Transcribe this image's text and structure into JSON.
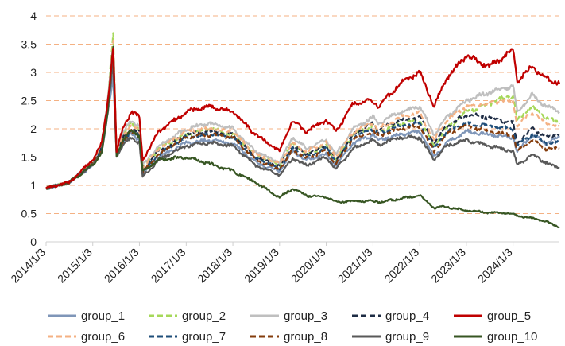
{
  "chart_data": {
    "type": "line",
    "ylim": [
      0,
      4
    ],
    "y_ticks": [
      "0",
      "0.5",
      "1",
      "1.5",
      "2",
      "2.5",
      "3",
      "3.5",
      "4"
    ],
    "x_ticks": [
      "2014/1/3",
      "2015/1/3",
      "2016/1/3",
      "2017/1/3",
      "2018/1/3",
      "2019/1/3",
      "2020/1/3",
      "2021/1/3",
      "2022/1/3",
      "2023/1/3",
      "2024/1/3"
    ],
    "grid": "horizontal dashed",
    "legend_position": "bottom",
    "series": [
      {
        "name": "group_1",
        "color": "#7f96b8",
        "dash": "solid",
        "x": [
          "2014/1/3",
          "2014/7/1",
          "2015/1/3",
          "2015/3/15",
          "2015/5/1",
          "2015/6/12",
          "2015/7/8",
          "2015/9/1",
          "2015/11/1",
          "2016/1/3",
          "2016/1/28",
          "2016/6/1",
          "2017/1/3",
          "2017/7/1",
          "2018/1/3",
          "2018/7/1",
          "2019/1/3",
          "2019/4/15",
          "2019/8/1",
          "2020/1/3",
          "2020/3/20",
          "2020/8/1",
          "2021/1/3",
          "2021/2/15",
          "2021/8/1",
          "2022/1/3",
          "2022/4/25",
          "2022/8/1",
          "2023/1/3",
          "2023/7/1",
          "2024/1/3",
          "2024/2/5",
          "2024/6/1",
          "2024/9/15",
          "2024/12/31"
        ],
        "y": [
          0.95,
          1.05,
          1.35,
          1.6,
          2.3,
          2.9,
          1.55,
          1.8,
          1.9,
          1.8,
          1.2,
          1.5,
          1.75,
          1.8,
          1.75,
          1.4,
          1.25,
          1.6,
          1.45,
          1.55,
          1.35,
          1.75,
          1.9,
          1.8,
          1.9,
          1.95,
          1.5,
          1.75,
          1.95,
          1.9,
          1.85,
          1.6,
          1.9,
          1.75,
          1.85
        ]
      },
      {
        "name": "group_2",
        "color": "#a6d85a",
        "dash": "dashed",
        "x": [
          "2014/1/3",
          "2014/7/1",
          "2015/1/3",
          "2015/3/15",
          "2015/5/1",
          "2015/6/12",
          "2015/7/8",
          "2015/9/1",
          "2015/11/1",
          "2016/1/3",
          "2016/1/28",
          "2016/6/1",
          "2017/1/3",
          "2017/7/1",
          "2018/1/3",
          "2018/7/1",
          "2019/1/3",
          "2019/4/15",
          "2019/8/1",
          "2020/1/3",
          "2020/3/20",
          "2020/8/1",
          "2021/1/3",
          "2021/2/15",
          "2021/8/1",
          "2022/1/3",
          "2022/4/25",
          "2022/8/1",
          "2023/1/3",
          "2023/7/1",
          "2024/1/3",
          "2024/2/5",
          "2024/6/1",
          "2024/9/15",
          "2024/12/31"
        ],
        "y": [
          0.95,
          1.05,
          1.4,
          1.7,
          2.5,
          3.65,
          1.6,
          1.9,
          2.1,
          2.0,
          1.3,
          1.65,
          1.9,
          2.0,
          1.9,
          1.55,
          1.35,
          1.75,
          1.55,
          1.7,
          1.45,
          1.9,
          2.05,
          1.95,
          2.1,
          2.15,
          1.7,
          2.0,
          2.3,
          2.45,
          2.6,
          2.15,
          2.4,
          2.2,
          2.1
        ]
      },
      {
        "name": "group_3",
        "color": "#bfbfbf",
        "dash": "solid",
        "x": [
          "2014/1/3",
          "2014/7/1",
          "2015/1/3",
          "2015/3/15",
          "2015/5/1",
          "2015/6/12",
          "2015/7/8",
          "2015/9/1",
          "2015/11/1",
          "2016/1/3",
          "2016/1/28",
          "2016/6/1",
          "2017/1/3",
          "2017/7/1",
          "2018/1/3",
          "2018/7/1",
          "2019/1/3",
          "2019/4/15",
          "2019/8/1",
          "2020/1/3",
          "2020/3/20",
          "2020/8/1",
          "2021/1/3",
          "2021/2/15",
          "2021/8/1",
          "2022/1/3",
          "2022/4/25",
          "2022/8/1",
          "2023/1/3",
          "2023/7/1",
          "2024/1/3",
          "2024/2/5",
          "2024/6/1",
          "2024/9/15",
          "2024/12/31"
        ],
        "y": [
          0.95,
          1.05,
          1.42,
          1.75,
          2.5,
          3.5,
          1.6,
          1.95,
          2.15,
          2.05,
          1.35,
          1.7,
          2.0,
          2.1,
          2.0,
          1.6,
          1.4,
          1.85,
          1.65,
          1.8,
          1.55,
          2.0,
          2.2,
          2.1,
          2.3,
          2.4,
          1.9,
          2.2,
          2.5,
          2.65,
          2.75,
          2.3,
          2.6,
          2.4,
          2.3
        ]
      },
      {
        "name": "group_4",
        "color": "#1e2c44",
        "dash": "dashed",
        "x": [
          "2014/1/3",
          "2014/7/1",
          "2015/1/3",
          "2015/3/15",
          "2015/5/1",
          "2015/6/12",
          "2015/7/8",
          "2015/9/1",
          "2015/11/1",
          "2016/1/3",
          "2016/1/28",
          "2016/6/1",
          "2017/1/3",
          "2017/7/1",
          "2018/1/3",
          "2018/7/1",
          "2019/1/3",
          "2019/4/15",
          "2019/8/1",
          "2020/1/3",
          "2020/3/20",
          "2020/8/1",
          "2021/1/3",
          "2021/2/15",
          "2021/8/1",
          "2022/1/3",
          "2022/4/25",
          "2022/8/1",
          "2023/1/3",
          "2023/7/1",
          "2024/1/3",
          "2024/2/5",
          "2024/6/1",
          "2024/9/15",
          "2024/12/31"
        ],
        "y": [
          0.95,
          1.05,
          1.38,
          1.65,
          2.4,
          3.4,
          1.55,
          1.85,
          2.0,
          1.95,
          1.28,
          1.6,
          1.9,
          1.95,
          1.9,
          1.5,
          1.33,
          1.7,
          1.55,
          1.7,
          1.45,
          1.9,
          2.1,
          2.0,
          2.15,
          2.2,
          1.75,
          2.05,
          2.25,
          2.2,
          2.1,
          1.75,
          2.0,
          1.85,
          1.9
        ]
      },
      {
        "name": "group_5",
        "color": "#c00000",
        "dash": "solid",
        "x": [
          "2014/1/3",
          "2014/7/1",
          "2015/1/3",
          "2015/3/15",
          "2015/5/1",
          "2015/6/12",
          "2015/7/8",
          "2015/9/1",
          "2015/11/1",
          "2016/1/3",
          "2016/1/28",
          "2016/6/1",
          "2017/1/3",
          "2017/7/1",
          "2018/1/3",
          "2018/7/1",
          "2019/1/3",
          "2019/4/15",
          "2019/8/1",
          "2020/1/3",
          "2020/3/20",
          "2020/8/1",
          "2021/1/3",
          "2021/2/15",
          "2021/8/1",
          "2022/1/3",
          "2022/4/25",
          "2022/8/1",
          "2023/1/3",
          "2023/7/1",
          "2024/1/3",
          "2024/2/5",
          "2024/6/1",
          "2024/9/15",
          "2024/12/31"
        ],
        "y": [
          0.95,
          1.05,
          1.45,
          1.75,
          2.5,
          3.45,
          1.6,
          2.05,
          2.3,
          2.2,
          1.45,
          1.95,
          2.3,
          2.4,
          2.3,
          1.9,
          1.6,
          2.15,
          1.95,
          2.15,
          1.95,
          2.45,
          2.5,
          2.4,
          2.8,
          3.0,
          2.4,
          2.9,
          3.3,
          3.1,
          3.4,
          2.85,
          3.1,
          2.9,
          2.8
        ]
      },
      {
        "name": "group_6",
        "color": "#f4b183",
        "dash": "dashed",
        "x": [
          "2014/1/3",
          "2014/7/1",
          "2015/1/3",
          "2015/3/15",
          "2015/5/1",
          "2015/6/12",
          "2015/7/8",
          "2015/9/1",
          "2015/11/1",
          "2016/1/3",
          "2016/1/28",
          "2016/6/1",
          "2017/1/3",
          "2017/7/1",
          "2018/1/3",
          "2018/7/1",
          "2019/1/3",
          "2019/4/15",
          "2019/8/1",
          "2020/1/3",
          "2020/3/20",
          "2020/8/1",
          "2021/1/3",
          "2021/2/15",
          "2021/8/1",
          "2022/1/3",
          "2022/4/25",
          "2022/8/1",
          "2023/1/3",
          "2023/7/1",
          "2024/1/3",
          "2024/2/5",
          "2024/6/1",
          "2024/9/15",
          "2024/12/31"
        ],
        "y": [
          0.95,
          1.05,
          1.4,
          1.7,
          2.45,
          3.55,
          1.6,
          1.9,
          2.05,
          1.95,
          1.3,
          1.65,
          1.95,
          2.0,
          1.95,
          1.55,
          1.38,
          1.75,
          1.6,
          1.75,
          1.5,
          1.95,
          2.1,
          2.0,
          2.2,
          2.3,
          1.8,
          2.15,
          2.4,
          2.45,
          2.5,
          2.05,
          2.3,
          2.1,
          2.05
        ]
      },
      {
        "name": "group_7",
        "color": "#1f4e79",
        "dash": "dashed",
        "x": [
          "2014/1/3",
          "2014/7/1",
          "2015/1/3",
          "2015/3/15",
          "2015/5/1",
          "2015/6/12",
          "2015/7/8",
          "2015/9/1",
          "2015/11/1",
          "2016/1/3",
          "2016/1/28",
          "2016/6/1",
          "2017/1/3",
          "2017/7/1",
          "2018/1/3",
          "2018/7/1",
          "2019/1/3",
          "2019/4/15",
          "2019/8/1",
          "2020/1/3",
          "2020/3/20",
          "2020/8/1",
          "2021/1/3",
          "2021/2/15",
          "2021/8/1",
          "2022/1/3",
          "2022/4/25",
          "2022/8/1",
          "2023/1/3",
          "2023/7/1",
          "2024/1/3",
          "2024/2/5",
          "2024/6/1",
          "2024/9/15",
          "2024/12/31"
        ],
        "y": [
          0.95,
          1.05,
          1.38,
          1.65,
          2.4,
          3.3,
          1.55,
          1.8,
          1.95,
          1.9,
          1.25,
          1.55,
          1.85,
          1.9,
          1.85,
          1.48,
          1.3,
          1.65,
          1.5,
          1.65,
          1.42,
          1.85,
          2.0,
          1.92,
          2.05,
          2.1,
          1.65,
          1.95,
          2.1,
          2.05,
          2.0,
          1.7,
          1.9,
          1.75,
          1.75
        ]
      },
      {
        "name": "group_8",
        "color": "#843c0c",
        "dash": "dashed",
        "x": [
          "2014/1/3",
          "2014/7/1",
          "2015/1/3",
          "2015/3/15",
          "2015/5/1",
          "2015/6/12",
          "2015/7/8",
          "2015/9/1",
          "2015/11/1",
          "2016/1/3",
          "2016/1/28",
          "2016/6/1",
          "2017/1/3",
          "2017/7/1",
          "2018/1/3",
          "2018/7/1",
          "2019/1/3",
          "2019/4/15",
          "2019/8/1",
          "2020/1/3",
          "2020/3/20",
          "2020/8/1",
          "2021/1/3",
          "2021/2/15",
          "2021/8/1",
          "2022/1/3",
          "2022/4/25",
          "2022/8/1",
          "2023/1/3",
          "2023/7/1",
          "2024/1/3",
          "2024/2/5",
          "2024/6/1",
          "2024/9/15",
          "2024/12/31"
        ],
        "y": [
          0.95,
          1.05,
          1.38,
          1.62,
          2.35,
          3.3,
          1.52,
          1.78,
          1.95,
          1.85,
          1.22,
          1.55,
          1.85,
          1.9,
          1.85,
          1.45,
          1.28,
          1.62,
          1.48,
          1.62,
          1.38,
          1.82,
          1.95,
          1.88,
          2.0,
          2.05,
          1.6,
          1.9,
          2.05,
          1.95,
          1.9,
          1.6,
          1.8,
          1.65,
          1.65
        ]
      },
      {
        "name": "group_9",
        "color": "#595959",
        "dash": "solid",
        "x": [
          "2014/1/3",
          "2014/7/1",
          "2015/1/3",
          "2015/3/15",
          "2015/5/1",
          "2015/6/12",
          "2015/7/8",
          "2015/9/1",
          "2015/11/1",
          "2016/1/3",
          "2016/1/28",
          "2016/6/1",
          "2017/1/3",
          "2017/7/1",
          "2018/1/3",
          "2018/7/1",
          "2019/1/3",
          "2019/4/15",
          "2019/8/1",
          "2020/1/3",
          "2020/3/20",
          "2020/8/1",
          "2021/1/3",
          "2021/2/15",
          "2021/8/1",
          "2022/1/3",
          "2022/4/25",
          "2022/8/1",
          "2023/1/3",
          "2023/7/1",
          "2024/1/3",
          "2024/2/5",
          "2024/6/1",
          "2024/9/15",
          "2024/12/31"
        ],
        "y": [
          0.95,
          1.05,
          1.36,
          1.6,
          2.3,
          3.2,
          1.5,
          1.72,
          1.85,
          1.75,
          1.15,
          1.45,
          1.7,
          1.75,
          1.7,
          1.35,
          1.18,
          1.48,
          1.35,
          1.5,
          1.28,
          1.65,
          1.8,
          1.72,
          1.85,
          1.85,
          1.45,
          1.7,
          1.8,
          1.7,
          1.6,
          1.35,
          1.55,
          1.4,
          1.3
        ]
      },
      {
        "name": "group_10",
        "color": "#375623",
        "dash": "solid",
        "x": [
          "2014/1/3",
          "2014/7/1",
          "2015/1/3",
          "2015/3/15",
          "2015/5/1",
          "2015/6/12",
          "2015/7/8",
          "2015/9/1",
          "2015/11/1",
          "2016/1/3",
          "2016/1/28",
          "2016/6/1",
          "2017/1/3",
          "2017/7/1",
          "2018/1/3",
          "2018/7/1",
          "2019/1/3",
          "2019/4/15",
          "2019/8/1",
          "2020/1/3",
          "2020/3/20",
          "2020/8/1",
          "2021/1/3",
          "2021/2/15",
          "2021/8/1",
          "2022/1/3",
          "2022/4/25",
          "2022/8/1",
          "2023/1/3",
          "2023/7/1",
          "2024/1/3",
          "2024/2/5",
          "2024/6/1",
          "2024/9/15",
          "2024/12/31"
        ],
        "y": [
          0.95,
          1.05,
          1.36,
          1.6,
          2.3,
          3.5,
          1.55,
          1.8,
          2.0,
          1.85,
          1.25,
          1.45,
          1.5,
          1.38,
          1.25,
          1.05,
          0.78,
          0.95,
          0.82,
          0.8,
          0.7,
          0.72,
          0.72,
          0.7,
          0.76,
          0.82,
          0.6,
          0.62,
          0.55,
          0.52,
          0.5,
          0.46,
          0.42,
          0.36,
          0.26
        ]
      }
    ]
  }
}
